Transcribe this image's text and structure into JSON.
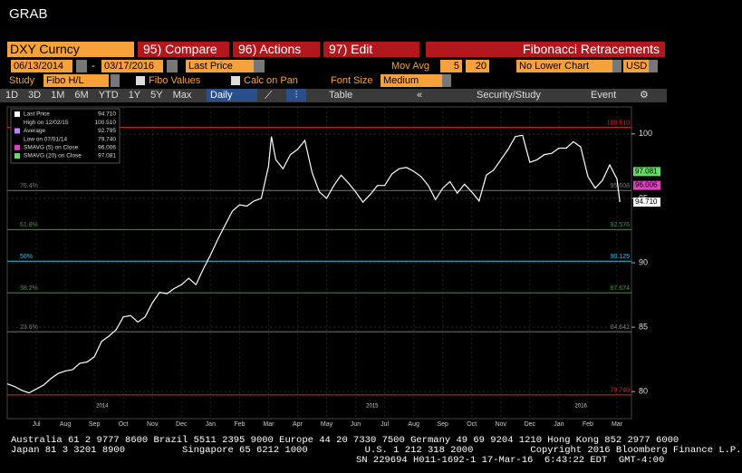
{
  "header": {
    "title": "GRAB"
  },
  "toolbar": {
    "ticker": "DXY Curncy",
    "buttons": [
      "95) Compare",
      "96) Actions",
      "97) Edit"
    ],
    "view": "Fibonacci Retracements",
    "start_date": "06/13/2014",
    "end_date": "03/17/2016",
    "date_sep": "-",
    "price": "Last Price",
    "mov_avg_label": "Mov Avg",
    "mov_avg": [
      "5",
      "20"
    ],
    "lower_chart": "No Lower Chart",
    "currency": "USD",
    "study_label": "Study",
    "study": "Fibo H/L",
    "fibo_values": "Fibo Values",
    "calc_on_pan": "Calc on Pan",
    "font_size_label": "Font Size",
    "font_size": "Medium",
    "periods": [
      "1D",
      "3D",
      "1M",
      "6M",
      "YTD",
      "1Y",
      "5Y",
      "Max"
    ],
    "frequency": "Daily",
    "table": "Table",
    "security_study": "Security/Study",
    "event": "Event"
  },
  "chart_data": {
    "type": "line",
    "x": [
      0,
      0.25,
      0.5,
      0.75,
      1,
      1.25,
      1.5,
      1.75,
      2,
      2.25,
      2.5,
      2.75,
      3,
      3.25,
      3.5,
      3.75,
      4,
      4.25,
      4.5,
      4.75,
      5,
      5.25,
      5.5,
      5.75,
      6,
      6.25,
      6.5,
      6.75,
      7,
      7.25,
      7.5,
      7.75,
      8,
      8.25,
      8.5,
      8.75,
      9,
      9.1,
      9.25,
      9.5,
      9.75,
      10,
      10.25,
      10.5,
      10.75,
      11,
      11.25,
      11.5,
      11.75,
      12,
      12.25,
      12.5,
      12.75,
      13,
      13.25,
      13.5,
      13.75,
      14,
      14.25,
      14.5,
      14.75,
      15,
      15.25,
      15.5,
      15.75,
      16,
      16.25,
      16.5,
      16.75,
      17,
      17.25,
      17.5,
      17.75,
      18,
      18.25,
      18.5,
      18.75,
      19,
      19.25,
      19.5,
      19.75,
      20,
      20.25,
      20.5,
      20.75,
      21,
      21.1
    ],
    "series": [
      {
        "name": "Last Price",
        "color": "#ffffff",
        "values": [
          80.6,
          80.4,
          80.1,
          79.9,
          80.2,
          80.5,
          81.0,
          81.4,
          81.6,
          81.7,
          82.2,
          82.3,
          82.7,
          83.9,
          84.3,
          84.8,
          85.8,
          85.9,
          85.4,
          85.8,
          86.9,
          87.7,
          87.6,
          88.0,
          88.3,
          88.8,
          88.3,
          89.5,
          90.6,
          91.8,
          92.9,
          94.0,
          94.5,
          94.4,
          94.8,
          95.0,
          97.5,
          99.8,
          98.0,
          97.3,
          98.4,
          98.8,
          99.5,
          97.0,
          95.5,
          95.0,
          96.0,
          96.8,
          96.2,
          95.5,
          94.7,
          95.3,
          96.0,
          96.0,
          96.9,
          97.3,
          97.4,
          97.1,
          96.7,
          96.0,
          94.9,
          95.8,
          96.3,
          95.4,
          96.1,
          95.5,
          94.8,
          96.8,
          97.2,
          98.0,
          98.8,
          99.8,
          99.9,
          97.8,
          98.0,
          98.4,
          98.5,
          98.9,
          98.9,
          99.4,
          99.0,
          96.7,
          95.8,
          96.4,
          97.6,
          96.5,
          94.71
        ]
      }
    ],
    "xlim": [
      0,
      21.5
    ],
    "ylim": [
      77.9,
      102.1
    ],
    "yticks": [
      80,
      85,
      90,
      95,
      100
    ],
    "xticks": [
      {
        "value": 1,
        "label": "Jul"
      },
      {
        "value": 2,
        "label": "Aug"
      },
      {
        "value": 3,
        "label": "Sep"
      },
      {
        "value": 4,
        "label": "Oct"
      },
      {
        "value": 5,
        "label": "Nov"
      },
      {
        "value": 6,
        "label": "Dec"
      },
      {
        "value": 7,
        "label": "Jan"
      },
      {
        "value": 8,
        "label": "Feb"
      },
      {
        "value": 9,
        "label": "Mar"
      },
      {
        "value": 10,
        "label": "Apr"
      },
      {
        "value": 11,
        "label": "May"
      },
      {
        "value": 12,
        "label": "Jun"
      },
      {
        "value": 13,
        "label": "Jul"
      },
      {
        "value": 14,
        "label": "Aug"
      },
      {
        "value": 15,
        "label": "Sep"
      },
      {
        "value": 16,
        "label": "Oct"
      },
      {
        "value": 17,
        "label": "Nov"
      },
      {
        "value": 18,
        "label": "Dec"
      },
      {
        "value": 19,
        "label": "Jan"
      },
      {
        "value": 20,
        "label": "Feb"
      },
      {
        "value": 21,
        "label": "Mar"
      }
    ],
    "year_labels": [
      {
        "value": 3.27,
        "label": "2014"
      },
      {
        "value": 12.57,
        "label": "2015"
      },
      {
        "value": 19.76,
        "label": "2016"
      }
    ],
    "legend": [
      {
        "name": "Last Price",
        "value": "94.710",
        "color": "#ffffff"
      },
      {
        "name": "High on 12/02/15",
        "value": "100.510",
        "color": null
      },
      {
        "name": "Average",
        "value": "92.795",
        "color": "#c080ff"
      },
      {
        "name": "Low on 07/01/14",
        "value": "79.740",
        "color": null
      },
      {
        "name": "SMAVG (5) on Close",
        "value": "96.006",
        "color": "#e040c0"
      },
      {
        "name": "SMAVG (20) on Close",
        "value": "97.081",
        "color": "#66dd66"
      }
    ],
    "levels": [
      {
        "value": 100.51,
        "value_label": "100.510",
        "color": "#e0282e"
      },
      {
        "label": "76.4%",
        "value": 95.608,
        "value_label": "95.608",
        "color": "#777777"
      },
      {
        "label": "61.8%",
        "value": 92.576,
        "value_label": "92.576",
        "color": "#3c9a3c"
      },
      {
        "label": "50%",
        "value": 90.125,
        "value_label": "90.125",
        "color": "#3ac0e0"
      },
      {
        "label": "38.2%",
        "value": 87.674,
        "value_label": "87.674",
        "color": "#3c9a3c"
      },
      {
        "label": "23.6%",
        "value": 84.642,
        "value_label": "84.642",
        "color": "#777777"
      },
      {
        "value": 79.74,
        "value_label": "79.740",
        "color": "#e0282e"
      }
    ],
    "tags": [
      {
        "value": 97.081,
        "label": "97.081",
        "color": "#66dd66"
      },
      {
        "value": 96.006,
        "label": "96.006",
        "color": "#e040c0"
      },
      {
        "value": 94.71,
        "label": "94.710",
        "color": "#ffffff"
      }
    ]
  },
  "footer": {
    "lines": [
      "Australia 61 2 9777 8600 Brazil 5511 2395 9000 Europe 44 20 7330 7500 Germany 49 69 9204 1210 Hong Kong 852 2977 6000",
      "Japan 81 3 3201 8900          Singapore 65 6212 1000          U.S. 1 212 318 2000          Copyright 2016 Bloomberg Finance L.P.",
      "SN 229694 H011-1692-1 17-Mar-16  6:43:22 EDT  GMT-4:00"
    ]
  }
}
